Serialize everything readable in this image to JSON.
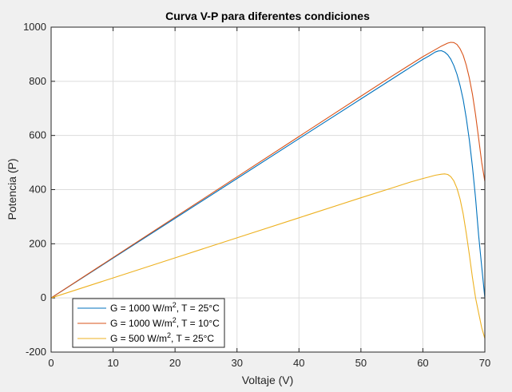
{
  "chart_data": {
    "type": "line",
    "title": "Curva V-P para diferentes condiciones",
    "xlabel": "Voltaje (V)",
    "ylabel": "Potencia (P)",
    "xlim": [
      0,
      70
    ],
    "ylim": [
      -200,
      1000
    ],
    "xticks": [
      0,
      10,
      20,
      30,
      40,
      50,
      60,
      70
    ],
    "yticks": [
      -200,
      0,
      200,
      400,
      600,
      800,
      1000
    ],
    "grid": true,
    "legend_position": "bottom-left",
    "series": [
      {
        "name": "G = 1000 W/m², T = 25°C",
        "legend_parts": [
          "G = 1000 W/m",
          "2",
          ", T = 25°C"
        ],
        "color": "#0072bd",
        "x": [
          0,
          10,
          20,
          30,
          40,
          50,
          55,
          58,
          60,
          61,
          62,
          62.5,
          63,
          63.5,
          64,
          64.5,
          65,
          65.5,
          66,
          66.5,
          67,
          67.5,
          68,
          68.5,
          69,
          69.5,
          70
        ],
        "y": [
          0,
          147,
          294,
          441,
          588,
          735,
          808,
          852,
          881,
          894,
          908,
          912,
          913,
          908,
          898,
          882,
          858,
          826,
          784,
          732,
          665,
          583,
          484,
          368,
          232,
          115,
          0
        ]
      },
      {
        "name": "G = 1000 W/m², T = 10°C",
        "legend_parts": [
          "G = 1000 W/m",
          "2",
          ", T = 10°C"
        ],
        "color": "#d95319",
        "x": [
          0,
          10,
          20,
          30,
          40,
          50,
          55,
          60,
          62,
          63,
          64,
          64.5,
          65,
          65.5,
          66,
          66.5,
          67,
          67.5,
          68,
          68.5,
          69,
          69.5,
          70
        ],
        "y": [
          0,
          149,
          298,
          447,
          596,
          745,
          819,
          891,
          917,
          930,
          941,
          944,
          943,
          936,
          920,
          896,
          860,
          812,
          752,
          676,
          590,
          500,
          430
        ]
      },
      {
        "name": "G = 500 W/m², T = 25°C",
        "legend_parts": [
          "G = 500 W/m",
          "2",
          ", T = 25°C"
        ],
        "color": "#edb120",
        "x": [
          0,
          10,
          20,
          30,
          40,
          50,
          55,
          58,
          60,
          61,
          62,
          63,
          63.5,
          64,
          64.5,
          65,
          65.5,
          66,
          66.5,
          67,
          67.5,
          68,
          68.5,
          69,
          69.5,
          70
        ],
        "y": [
          0,
          74,
          148,
          222,
          296,
          370,
          406,
          428,
          441,
          447,
          453,
          457,
          458,
          456,
          448,
          432,
          405,
          365,
          310,
          240,
          160,
          75,
          0,
          -55,
          -110,
          -150
        ]
      }
    ]
  }
}
